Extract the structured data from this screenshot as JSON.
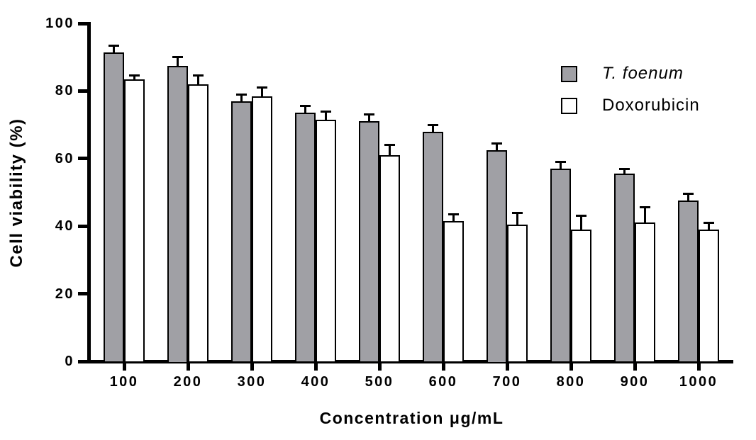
{
  "chart_data": {
    "type": "bar",
    "title": "",
    "xlabel": "Concentration μg/mL",
    "ylabel": "Cell viability (%)",
    "categories": [
      "100",
      "200",
      "300",
      "400",
      "500",
      "600",
      "700",
      "800",
      "900",
      "1000"
    ],
    "series": [
      {
        "name": "T. foenum",
        "fill": "#a0a0a5",
        "values": [
          91.5,
          87.5,
          77,
          73.5,
          71,
          68,
          62.5,
          57,
          55.5,
          47.5
        ],
        "errors": [
          2,
          2.5,
          2,
          2,
          2,
          2,
          2,
          2,
          1.5,
          2
        ]
      },
      {
        "name": "Doxorubicin",
        "fill": "#ffffff",
        "values": [
          83.5,
          82,
          78.5,
          71.5,
          61,
          41.5,
          40.5,
          39,
          41,
          39
        ],
        "errors": [
          1,
          2.5,
          2.5,
          2.5,
          3,
          2,
          3.5,
          4,
          4.5,
          2
        ]
      }
    ],
    "ylim": [
      0,
      100
    ],
    "yticks": [
      0,
      20,
      40,
      60,
      80,
      100
    ],
    "error_bars": "upper",
    "grid": false,
    "legend_position": "top-right",
    "axis_color": "#000000"
  }
}
